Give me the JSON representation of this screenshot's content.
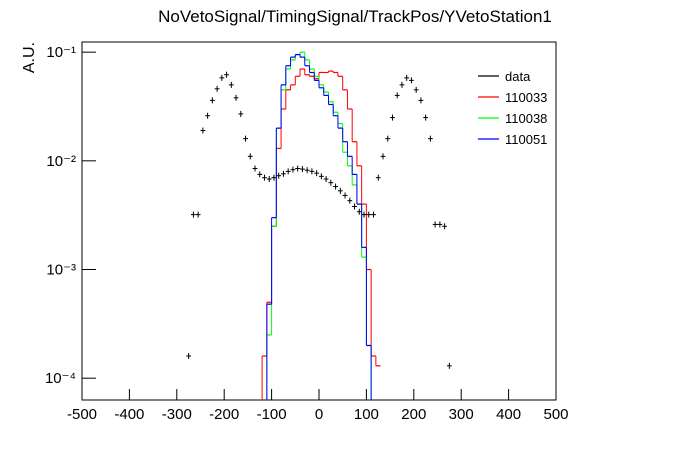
{
  "chart_data": {
    "type": "histogram",
    "title": "NoVetoSignal/TimingSignal/TrackPos/YVetoStation1",
    "ylabel": "A.U.",
    "ylog": true,
    "xlim": [
      -500,
      500
    ],
    "xticks": [
      -500,
      -400,
      -300,
      -200,
      -100,
      0,
      100,
      200,
      300,
      400,
      500
    ],
    "ylim": [
      6.3e-05,
      0.124
    ],
    "yticks": [
      {
        "value": 0.0001,
        "label": "10⁻⁴"
      },
      {
        "value": 0.001,
        "label": "10⁻³"
      },
      {
        "value": 0.01,
        "label": "10⁻²"
      },
      {
        "value": 0.1,
        "label": "10⁻¹"
      }
    ],
    "bins": [
      -130,
      -120,
      -110,
      -100,
      -90,
      -80,
      -70,
      -60,
      -50,
      -40,
      -30,
      -20,
      -10,
      0,
      10,
      20,
      30,
      40,
      50,
      60,
      70,
      80,
      90,
      100,
      110,
      120,
      130
    ],
    "points": {
      "name": "data",
      "color": "#000000",
      "x": [
        -275,
        -265,
        -255,
        -245,
        -235,
        -225,
        -215,
        -205,
        -195,
        -185,
        -175,
        -165,
        -155,
        -145,
        -135,
        -125,
        -115,
        -105,
        -95,
        -85,
        -75,
        -65,
        -55,
        -45,
        -35,
        -25,
        -15,
        -5,
        5,
        15,
        25,
        35,
        45,
        55,
        65,
        75,
        85,
        95,
        105,
        115,
        125,
        135,
        145,
        155,
        165,
        175,
        185,
        195,
        205,
        215,
        225,
        235,
        245,
        255,
        265,
        275
      ],
      "values": [
        0.00016,
        0.0032,
        0.0032,
        0.019,
        0.026,
        0.036,
        0.046,
        0.058,
        0.062,
        0.05,
        0.038,
        0.027,
        0.016,
        0.011,
        0.0085,
        0.0075,
        0.007,
        0.0068,
        0.007,
        0.0073,
        0.0076,
        0.008,
        0.0083,
        0.0085,
        0.0084,
        0.0082,
        0.008,
        0.0077,
        0.0072,
        0.0068,
        0.0063,
        0.0058,
        0.0053,
        0.0048,
        0.0043,
        0.0038,
        0.0034,
        0.0032,
        0.0032,
        0.0032,
        0.007,
        0.011,
        0.016,
        0.025,
        0.04,
        0.05,
        0.058,
        0.055,
        0.045,
        0.036,
        0.025,
        0.016,
        0.0026,
        0.0026,
        0.0025,
        0.00013
      ]
    },
    "series": [
      {
        "name": "110033",
        "color": "#ff0000",
        "values": [
          0,
          0.00016,
          0.0005,
          0.0025,
          0.013,
          0.03,
          0.045,
          0.05,
          0.06,
          0.07,
          0.062,
          0.06,
          0.057,
          0.065,
          0.065,
          0.067,
          0.065,
          0.06,
          0.045,
          0.03,
          0.015,
          0.009,
          0.004,
          0.001,
          0.00016,
          0.00013
        ]
      },
      {
        "name": "110038",
        "color": "#00ff00",
        "values": [
          0,
          0,
          0.00025,
          0.0025,
          0.02,
          0.045,
          0.07,
          0.085,
          0.095,
          0.1,
          0.085,
          0.07,
          0.06,
          0.05,
          0.043,
          0.035,
          0.028,
          0.022,
          0.012,
          0.009,
          0.006,
          0.004,
          0.0013,
          0.0002,
          0,
          0
        ]
      },
      {
        "name": "110051",
        "color": "#0000ff",
        "values": [
          0,
          0,
          0.00048,
          0.003,
          0.02,
          0.05,
          0.075,
          0.09,
          0.095,
          0.09,
          0.075,
          0.065,
          0.055,
          0.047,
          0.04,
          0.033,
          0.026,
          0.02,
          0.015,
          0.011,
          0.0075,
          0.004,
          0.0016,
          0.0002,
          0,
          0
        ]
      }
    ]
  }
}
